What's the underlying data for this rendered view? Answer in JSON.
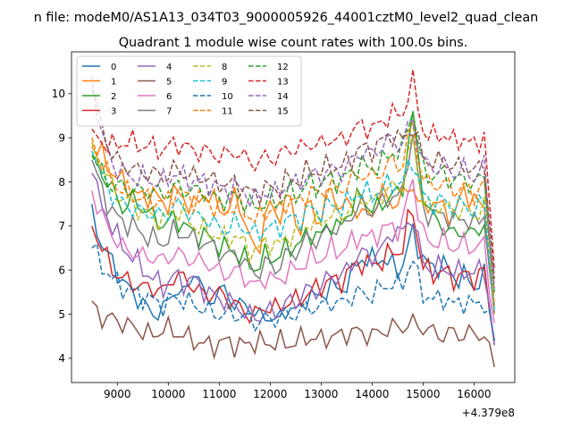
{
  "figure": {
    "suptitle": "n file: modeM0/AS1A13_034T03_9000005926_44001cztM0_level2_quad_clean",
    "x_offset_label": "+4.379e8"
  },
  "chart_data": {
    "type": "line",
    "title": "Quadrant 1 module wise count rates with 100.0s bins.",
    "xlabel": "",
    "ylabel": "",
    "x_offset": 437900000,
    "xlim": [
      8100,
      16800
    ],
    "ylim": [
      3.45,
      10.95
    ],
    "xticks": [
      9000,
      10000,
      11000,
      12000,
      13000,
      14000,
      15000,
      16000
    ],
    "xtick_labels": [
      "9000",
      "10000",
      "11000",
      "12000",
      "13000",
      "14000",
      "15000",
      "16000"
    ],
    "yticks": [
      4,
      5,
      6,
      7,
      8,
      9,
      10
    ],
    "ytick_labels": [
      "4",
      "5",
      "6",
      "7",
      "8",
      "9",
      "10"
    ],
    "grid": false,
    "legend_position": "top-left",
    "legend_columns": 4,
    "x_start": 8500,
    "x_step": 100,
    "n_points": 80,
    "series": [
      {
        "name": "0",
        "color": "#1f77b4",
        "dash": "solid",
        "profile": [
          7.5,
          6.5,
          6.2,
          5.7,
          5.5,
          5.2,
          5.0,
          5.1,
          5.6,
          5.4,
          6.1,
          5.3,
          5.4,
          5.6,
          5.1,
          5.3,
          4.9,
          5.0,
          4.8,
          5.2,
          5.0,
          5.5,
          5.3,
          5.7,
          5.5,
          5.8,
          6.3,
          6.2,
          6.3,
          6.1,
          6.0,
          6.9,
          6.3,
          6.0,
          6.2,
          5.8,
          5.9,
          5.6,
          5.9,
          4.4
        ]
      },
      {
        "name": "1",
        "color": "#ff7f0e",
        "dash": "solid",
        "profile": [
          8.8,
          8.6,
          8.2,
          8.0,
          7.8,
          7.6,
          7.8,
          7.4,
          7.8,
          7.6,
          7.4,
          7.8,
          7.5,
          7.3,
          7.7,
          7.0,
          6.2,
          7.6,
          7.1,
          7.8,
          6.8,
          7.6,
          7.0,
          7.9,
          7.4,
          7.5,
          7.3,
          7.2,
          7.8,
          7.5,
          7.6,
          8.0,
          7.3,
          7.6,
          7.4,
          7.2,
          7.8,
          7.6,
          7.4,
          5.2
        ]
      },
      {
        "name": "2",
        "color": "#2ca02c",
        "dash": "solid",
        "profile": [
          8.6,
          8.2,
          7.8,
          7.4,
          7.6,
          7.4,
          7.2,
          7.0,
          7.2,
          7.0,
          6.8,
          6.8,
          6.6,
          6.5,
          6.4,
          6.2,
          6.0,
          6.4,
          6.2,
          6.6,
          6.5,
          6.9,
          6.7,
          7.1,
          6.9,
          7.4,
          7.7,
          7.4,
          7.4,
          7.8,
          7.6,
          9.7,
          7.8,
          7.2,
          7.0,
          6.8,
          6.9,
          6.8,
          7.1,
          5.0
        ]
      },
      {
        "name": "3",
        "color": "#d62728",
        "dash": "solid",
        "profile": [
          7.0,
          6.5,
          6.0,
          5.8,
          5.7,
          5.6,
          5.6,
          5.5,
          5.9,
          5.8,
          5.6,
          5.4,
          5.5,
          5.4,
          5.2,
          5.0,
          5.0,
          5.2,
          5.1,
          5.3,
          5.3,
          5.5,
          5.6,
          5.8,
          5.7,
          6.0,
          6.2,
          6.1,
          6.2,
          6.4,
          6.4,
          7.5,
          6.1,
          5.9,
          6.0,
          5.8,
          5.9,
          5.8,
          6.0,
          4.3
        ]
      },
      {
        "name": "4",
        "color": "#9467bd",
        "dash": "solid",
        "profile": [
          8.2,
          7.4,
          7.0,
          6.5,
          6.3,
          6.0,
          5.8,
          5.6,
          5.9,
          5.7,
          5.8,
          5.5,
          5.4,
          5.3,
          5.2,
          5.0,
          4.9,
          5.1,
          5.0,
          5.3,
          5.3,
          5.6,
          5.5,
          5.9,
          5.8,
          6.1,
          6.4,
          6.3,
          6.4,
          6.9,
          6.8,
          7.3,
          6.2,
          6.0,
          6.1,
          5.9,
          6.0,
          5.9,
          6.1,
          4.3
        ]
      },
      {
        "name": "5",
        "color": "#8c564b",
        "dash": "solid",
        "profile": [
          5.3,
          4.9,
          4.9,
          4.8,
          4.7,
          4.6,
          4.5,
          4.7,
          4.6,
          4.5,
          4.4,
          4.3,
          4.3,
          4.4,
          4.3,
          4.3,
          4.4,
          4.3,
          4.4,
          4.3,
          4.4,
          4.5,
          4.4,
          4.5,
          4.5,
          4.6,
          4.6,
          4.5,
          4.6,
          4.7,
          4.7,
          4.8,
          4.7,
          4.6,
          4.5,
          4.6,
          4.5,
          4.6,
          4.5,
          3.8
        ]
      },
      {
        "name": "6",
        "color": "#e377c2",
        "dash": "solid",
        "profile": [
          7.8,
          7.2,
          6.8,
          6.5,
          6.4,
          6.3,
          6.3,
          6.2,
          6.4,
          6.3,
          6.2,
          6.2,
          6.0,
          5.9,
          6.0,
          5.8,
          5.6,
          5.9,
          5.7,
          6.0,
          6.0,
          6.3,
          6.2,
          6.5,
          6.4,
          6.6,
          6.8,
          6.7,
          6.9,
          7.0,
          6.9,
          8.2,
          6.8,
          6.6,
          6.7,
          6.5,
          6.6,
          6.5,
          6.6,
          4.8
        ]
      },
      {
        "name": "7",
        "color": "#7f7f7f",
        "dash": "solid",
        "profile": [
          8.5,
          7.8,
          7.3,
          7.1,
          7.0,
          6.8,
          6.7,
          6.6,
          6.9,
          6.8,
          6.7,
          6.6,
          6.5,
          6.3,
          6.4,
          6.1,
          5.9,
          6.2,
          6.0,
          6.4,
          6.4,
          6.8,
          6.6,
          7.0,
          6.9,
          7.2,
          7.5,
          7.3,
          7.5,
          7.7,
          7.6,
          9.2,
          7.4,
          7.2,
          7.3,
          7.1,
          7.2,
          7.0,
          7.3,
          5.0
        ]
      },
      {
        "name": "8",
        "color": "#bcbd22",
        "dash": "dashed",
        "profile": [
          8.9,
          8.3,
          7.9,
          7.6,
          7.5,
          7.3,
          7.2,
          7.1,
          7.4,
          7.2,
          7.0,
          6.9,
          6.8,
          6.7,
          6.8,
          6.5,
          6.4,
          6.7,
          6.5,
          6.8,
          6.8,
          7.1,
          7.0,
          7.3,
          7.2,
          7.4,
          7.7,
          7.5,
          7.7,
          7.9,
          7.8,
          9.1,
          7.6,
          7.4,
          7.5,
          7.3,
          7.4,
          7.2,
          7.5,
          5.0
        ]
      },
      {
        "name": "9",
        "color": "#17becf",
        "dash": "dashed",
        "profile": [
          8.7,
          8.1,
          7.7,
          7.5,
          7.4,
          7.3,
          7.3,
          7.2,
          7.5,
          7.4,
          7.2,
          7.2,
          7.0,
          6.9,
          7.1,
          6.9,
          6.8,
          7.0,
          6.9,
          7.2,
          7.1,
          7.4,
          7.3,
          7.5,
          7.4,
          7.6,
          7.8,
          7.7,
          7.8,
          8.0,
          7.9,
          8.6,
          7.7,
          7.5,
          7.6,
          7.4,
          7.5,
          7.3,
          7.6,
          5.1
        ]
      },
      {
        "name": "10",
        "color": "#1f77b4",
        "dash": "dashed",
        "profile": [
          6.5,
          6.1,
          5.8,
          5.6,
          5.5,
          5.4,
          5.3,
          5.2,
          5.4,
          5.3,
          5.2,
          5.1,
          5.0,
          5.0,
          5.0,
          4.9,
          4.8,
          4.9,
          4.9,
          5.0,
          5.0,
          5.2,
          5.1,
          5.3,
          5.2,
          5.4,
          5.5,
          5.4,
          5.6,
          5.7,
          5.6,
          6.3,
          5.5,
          5.3,
          5.4,
          5.2,
          5.3,
          5.2,
          5.3,
          4.4
        ]
      },
      {
        "name": "11",
        "color": "#ff7f0e",
        "dash": "dashed",
        "profile": [
          9.0,
          8.4,
          8.0,
          7.8,
          7.7,
          7.6,
          7.6,
          7.5,
          7.8,
          7.7,
          7.6,
          7.6,
          7.4,
          7.3,
          7.5,
          7.3,
          7.1,
          7.4,
          7.3,
          7.6,
          7.5,
          7.8,
          7.7,
          7.9,
          7.8,
          8.0,
          8.2,
          8.1,
          8.2,
          8.5,
          8.3,
          9.4,
          8.1,
          7.9,
          8.0,
          7.8,
          7.9,
          7.7,
          8.0,
          5.2
        ]
      },
      {
        "name": "12",
        "color": "#2ca02c",
        "dash": "dashed",
        "profile": [
          8.6,
          8.2,
          7.9,
          7.9,
          7.8,
          7.8,
          7.8,
          7.7,
          7.9,
          7.8,
          7.8,
          7.8,
          7.6,
          7.6,
          7.7,
          7.5,
          7.4,
          7.6,
          7.5,
          7.8,
          7.7,
          8.0,
          7.9,
          8.1,
          8.0,
          8.2,
          8.4,
          8.3,
          8.4,
          8.7,
          8.6,
          9.8,
          8.3,
          8.1,
          8.2,
          8.0,
          8.1,
          7.9,
          8.2,
          5.5
        ]
      },
      {
        "name": "13",
        "color": "#d62728",
        "dash": "dashed",
        "profile": [
          9.2,
          8.9,
          8.8,
          8.9,
          8.9,
          8.8,
          8.8,
          8.7,
          8.9,
          8.8,
          8.7,
          8.7,
          8.6,
          8.6,
          8.7,
          8.5,
          8.4,
          8.6,
          8.5,
          8.8,
          8.7,
          8.9,
          8.8,
          9.0,
          8.9,
          9.1,
          9.3,
          9.2,
          9.3,
          9.6,
          9.4,
          10.4,
          9.2,
          9.0,
          9.1,
          8.9,
          9.0,
          8.8,
          9.1,
          6.0
        ]
      },
      {
        "name": "14",
        "color": "#9467bd",
        "dash": "dashed",
        "profile": [
          10.4,
          9.0,
          8.4,
          8.2,
          8.1,
          8.1,
          8.0,
          8.0,
          8.2,
          8.1,
          8.0,
          8.0,
          7.9,
          7.8,
          7.9,
          7.7,
          7.6,
          7.8,
          7.7,
          8.0,
          7.9,
          8.2,
          8.1,
          8.3,
          8.2,
          8.4,
          8.7,
          8.6,
          8.8,
          9.0,
          8.8,
          9.5,
          8.5,
          8.3,
          8.4,
          8.2,
          8.3,
          8.1,
          8.4,
          5.6
        ]
      },
      {
        "name": "15",
        "color": "#8c564b",
        "dash": "dashed",
        "profile": [
          10.1,
          9.2,
          8.6,
          8.4,
          8.3,
          8.2,
          8.2,
          8.1,
          8.3,
          8.2,
          8.1,
          8.1,
          8.0,
          7.9,
          8.0,
          7.8,
          7.7,
          7.9,
          7.8,
          8.1,
          8.0,
          8.3,
          8.2,
          8.4,
          8.3,
          8.5,
          8.8,
          8.7,
          8.9,
          9.1,
          8.9,
          9.3,
          8.6,
          8.4,
          8.5,
          8.3,
          8.4,
          8.2,
          8.5,
          5.8
        ]
      }
    ]
  }
}
